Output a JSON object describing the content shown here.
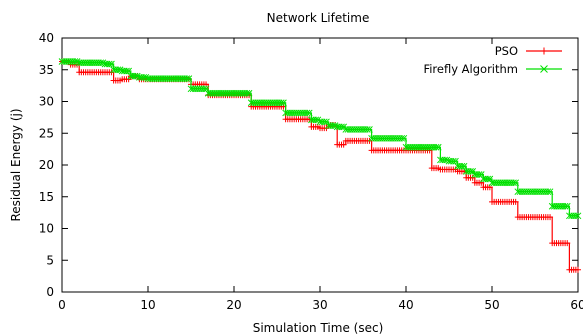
{
  "chart_data": {
    "type": "line",
    "title": "Network Lifetime",
    "xlabel": "Simulation Time (sec)",
    "ylabel": "Residual Energy (j)",
    "xlim": [
      0,
      60
    ],
    "ylim": [
      0,
      40
    ],
    "xticks": [
      0,
      10,
      20,
      30,
      40,
      50,
      60
    ],
    "yticks": [
      0,
      5,
      10,
      15,
      20,
      25,
      30,
      35,
      40
    ],
    "grid": false,
    "legend_position": "top-right",
    "series": [
      {
        "name": "PSO",
        "color": "#ff0000",
        "marker": "plus",
        "points": [
          [
            0,
            36.3
          ],
          [
            1,
            35.8
          ],
          [
            2,
            34.6
          ],
          [
            3,
            34.6
          ],
          [
            4,
            34.6
          ],
          [
            5,
            34.6
          ],
          [
            6,
            33.3
          ],
          [
            7,
            33.5
          ],
          [
            8,
            34.0
          ],
          [
            9,
            33.5
          ],
          [
            10,
            33.5
          ],
          [
            11,
            33.5
          ],
          [
            12,
            33.5
          ],
          [
            13,
            33.5
          ],
          [
            14,
            33.5
          ],
          [
            15,
            32.7
          ],
          [
            16,
            32.7
          ],
          [
            17,
            31.0
          ],
          [
            18,
            31.0
          ],
          [
            19,
            31.0
          ],
          [
            20,
            31.0
          ],
          [
            21,
            31.0
          ],
          [
            22,
            29.2
          ],
          [
            23,
            29.2
          ],
          [
            24,
            29.2
          ],
          [
            25,
            29.2
          ],
          [
            26,
            27.2
          ],
          [
            27,
            27.2
          ],
          [
            28,
            27.2
          ],
          [
            29,
            26.0
          ],
          [
            30,
            25.8
          ],
          [
            31,
            26.3
          ],
          [
            32,
            23.2
          ],
          [
            33,
            23.8
          ],
          [
            34,
            23.8
          ],
          [
            35,
            23.8
          ],
          [
            36,
            22.3
          ],
          [
            37,
            22.3
          ],
          [
            38,
            22.3
          ],
          [
            39,
            22.3
          ],
          [
            40,
            22.3
          ],
          [
            41,
            22.3
          ],
          [
            42,
            22.3
          ],
          [
            43,
            19.5
          ],
          [
            44,
            19.3
          ],
          [
            45,
            19.3
          ],
          [
            46,
            19.0
          ],
          [
            47,
            18.0
          ],
          [
            48,
            17.2
          ],
          [
            49,
            16.5
          ],
          [
            50,
            14.2
          ],
          [
            51,
            14.2
          ],
          [
            52,
            14.2
          ],
          [
            53,
            11.8
          ],
          [
            54,
            11.8
          ],
          [
            55,
            11.8
          ],
          [
            56,
            11.8
          ],
          [
            57,
            7.7
          ],
          [
            58,
            7.7
          ],
          [
            59,
            3.5
          ],
          [
            60,
            3.5
          ]
        ]
      },
      {
        "name": "Firefly Algorithm",
        "color": "#00e000",
        "marker": "cross",
        "points": [
          [
            0,
            36.3
          ],
          [
            1,
            36.3
          ],
          [
            2,
            36.1
          ],
          [
            3,
            36.1
          ],
          [
            4,
            36.1
          ],
          [
            5,
            35.9
          ],
          [
            6,
            35.0
          ],
          [
            7,
            34.8
          ],
          [
            8,
            34.0
          ],
          [
            9,
            33.8
          ],
          [
            10,
            33.6
          ],
          [
            11,
            33.6
          ],
          [
            12,
            33.6
          ],
          [
            13,
            33.6
          ],
          [
            14,
            33.6
          ],
          [
            15,
            32.0
          ],
          [
            16,
            32.0
          ],
          [
            17,
            31.3
          ],
          [
            18,
            31.3
          ],
          [
            19,
            31.3
          ],
          [
            20,
            31.3
          ],
          [
            21,
            31.3
          ],
          [
            22,
            29.8
          ],
          [
            23,
            29.8
          ],
          [
            24,
            29.8
          ],
          [
            25,
            29.8
          ],
          [
            26,
            28.2
          ],
          [
            27,
            28.2
          ],
          [
            28,
            28.2
          ],
          [
            29,
            27.1
          ],
          [
            30,
            26.8
          ],
          [
            31,
            26.2
          ],
          [
            32,
            26.0
          ],
          [
            33,
            25.6
          ],
          [
            34,
            25.6
          ],
          [
            35,
            25.6
          ],
          [
            36,
            24.2
          ],
          [
            37,
            24.2
          ],
          [
            38,
            24.2
          ],
          [
            39,
            24.2
          ],
          [
            40,
            22.8
          ],
          [
            41,
            22.8
          ],
          [
            42,
            22.8
          ],
          [
            43,
            22.8
          ],
          [
            44,
            20.8
          ],
          [
            45,
            20.6
          ],
          [
            46,
            19.8
          ],
          [
            47,
            19.0
          ],
          [
            48,
            18.5
          ],
          [
            49,
            17.8
          ],
          [
            50,
            17.2
          ],
          [
            51,
            17.2
          ],
          [
            52,
            17.2
          ],
          [
            53,
            15.8
          ],
          [
            54,
            15.8
          ],
          [
            55,
            15.8
          ],
          [
            56,
            15.8
          ],
          [
            57,
            13.5
          ],
          [
            58,
            13.5
          ],
          [
            59,
            12.0
          ],
          [
            60,
            12.0
          ]
        ]
      }
    ]
  }
}
